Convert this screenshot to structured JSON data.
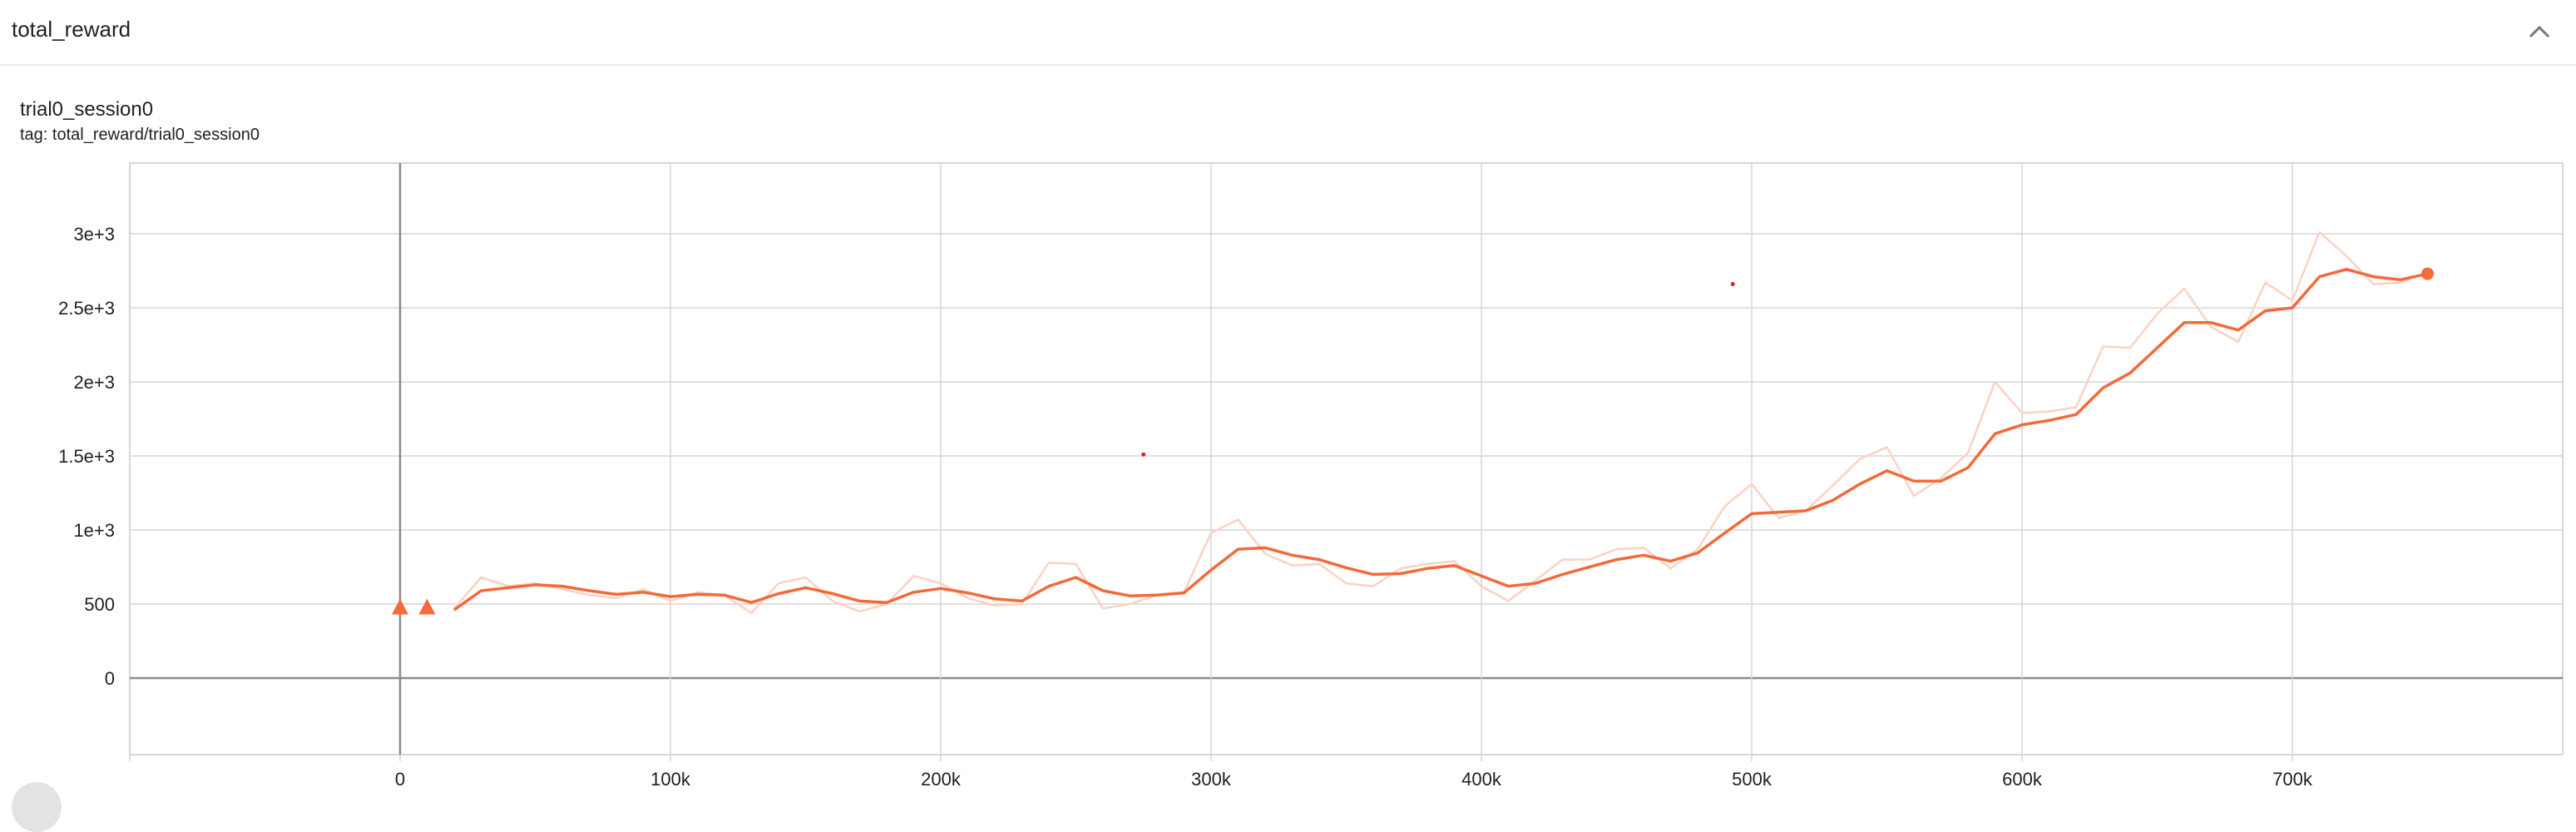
{
  "card": {
    "title": "total_reward",
    "run_name": "trial0_session0",
    "tag_prefix": "tag:",
    "tag": "total_reward/trial0_session0"
  },
  "colors": {
    "smoothed": "#f4693a",
    "raw": "#fbd2c3",
    "marker": "#f46b3c",
    "outlier": "#dd1f1f",
    "grid": "#d6d6d6",
    "axis": "#8a8a8a"
  },
  "chart_data": {
    "type": "line",
    "xlim": [
      -100000,
      800000
    ],
    "ylim": [
      -500,
      3500
    ],
    "yticks": [
      {
        "value": 0,
        "label": "0"
      },
      {
        "value": 500,
        "label": "500"
      },
      {
        "value": 1000,
        "label": "1e+3"
      },
      {
        "value": 1500,
        "label": "1.5e+3"
      },
      {
        "value": 2000,
        "label": "2e+3"
      },
      {
        "value": 2500,
        "label": "2.5e+3"
      },
      {
        "value": 3000,
        "label": "3e+3"
      }
    ],
    "xticks": [
      {
        "value": 0,
        "label": "0"
      },
      {
        "value": 100000,
        "label": "100k"
      },
      {
        "value": 200000,
        "label": "200k"
      },
      {
        "value": 300000,
        "label": "300k"
      },
      {
        "value": 400000,
        "label": "400k"
      },
      {
        "value": 500000,
        "label": "500k"
      },
      {
        "value": 600000,
        "label": "600k"
      },
      {
        "value": 700000,
        "label": "700k"
      }
    ],
    "grid": true,
    "series": [
      {
        "style": "raw",
        "x": [
          20000,
          30000,
          40000,
          50000,
          60000,
          70000,
          80000,
          90000,
          100000,
          110000,
          120000,
          130000,
          140000,
          150000,
          160000,
          170000,
          180000,
          190000,
          200000,
          210000,
          220000,
          230000,
          240000,
          250000,
          260000,
          270000,
          280000,
          290000,
          300000,
          310000,
          320000,
          330000,
          340000,
          350000,
          360000,
          370000,
          380000,
          390000,
          400000,
          410000,
          420000,
          430000,
          440000,
          450000,
          460000,
          470000,
          480000,
          490000,
          500000,
          510000,
          520000,
          530000,
          540000,
          550000,
          560000,
          570000,
          580000,
          590000,
          600000,
          610000,
          620000,
          630000,
          640000,
          650000,
          660000,
          670000,
          680000,
          690000,
          700000,
          710000,
          720000,
          730000,
          740000,
          750000
        ],
        "y": [
          470,
          680,
          620,
          640,
          600,
          560,
          540,
          600,
          520,
          580,
          560,
          440,
          640,
          680,
          520,
          450,
          500,
          690,
          640,
          540,
          490,
          500,
          780,
          770,
          470,
          500,
          560,
          580,
          980,
          1070,
          840,
          760,
          770,
          640,
          620,
          740,
          770,
          790,
          620,
          520,
          660,
          800,
          800,
          870,
          880,
          740,
          870,
          1160,
          1310,
          1080,
          1130,
          1300,
          1480,
          1560,
          1230,
          1350,
          1520,
          2000,
          1790,
          1800,
          1830,
          2240,
          2230,
          2460,
          2630,
          2370,
          2270,
          2670,
          2550,
          3010,
          2850,
          2660,
          2670,
          2740
        ]
      },
      {
        "style": "smoothed",
        "x": [
          20000,
          30000,
          40000,
          50000,
          60000,
          70000,
          80000,
          90000,
          100000,
          110000,
          120000,
          130000,
          140000,
          150000,
          160000,
          170000,
          180000,
          190000,
          200000,
          210000,
          220000,
          230000,
          240000,
          250000,
          260000,
          270000,
          280000,
          290000,
          300000,
          310000,
          320000,
          330000,
          340000,
          350000,
          360000,
          370000,
          380000,
          390000,
          400000,
          410000,
          420000,
          430000,
          440000,
          450000,
          460000,
          470000,
          480000,
          490000,
          500000,
          510000,
          520000,
          530000,
          540000,
          550000,
          560000,
          570000,
          580000,
          590000,
          600000,
          610000,
          620000,
          630000,
          640000,
          650000,
          660000,
          670000,
          680000,
          690000,
          700000,
          710000,
          720000,
          730000,
          740000,
          750000
        ],
        "y": [
          460,
          590,
          610,
          630,
          620,
          590,
          565,
          580,
          550,
          565,
          560,
          510,
          570,
          610,
          570,
          520,
          510,
          580,
          605,
          575,
          535,
          520,
          620,
          680,
          590,
          555,
          560,
          575,
          730,
          870,
          880,
          830,
          800,
          745,
          700,
          705,
          740,
          760,
          690,
          620,
          640,
          700,
          750,
          800,
          830,
          790,
          845,
          980,
          1110,
          1120,
          1130,
          1200,
          1310,
          1400,
          1330,
          1330,
          1420,
          1650,
          1710,
          1740,
          1780,
          1960,
          2060,
          2230,
          2400,
          2400,
          2350,
          2480,
          2500,
          2710,
          2760,
          2710,
          2690,
          2730
        ]
      }
    ],
    "markers": [
      {
        "x": 0,
        "y": 475,
        "shape": "triangle"
      },
      {
        "x": 10000,
        "y": 475,
        "shape": "triangle"
      },
      {
        "x": 750000,
        "y": 2730,
        "shape": "circle"
      }
    ],
    "outliers": [
      {
        "x": 275000,
        "y": 1510
      },
      {
        "x": 493000,
        "y": 2660
      }
    ]
  }
}
